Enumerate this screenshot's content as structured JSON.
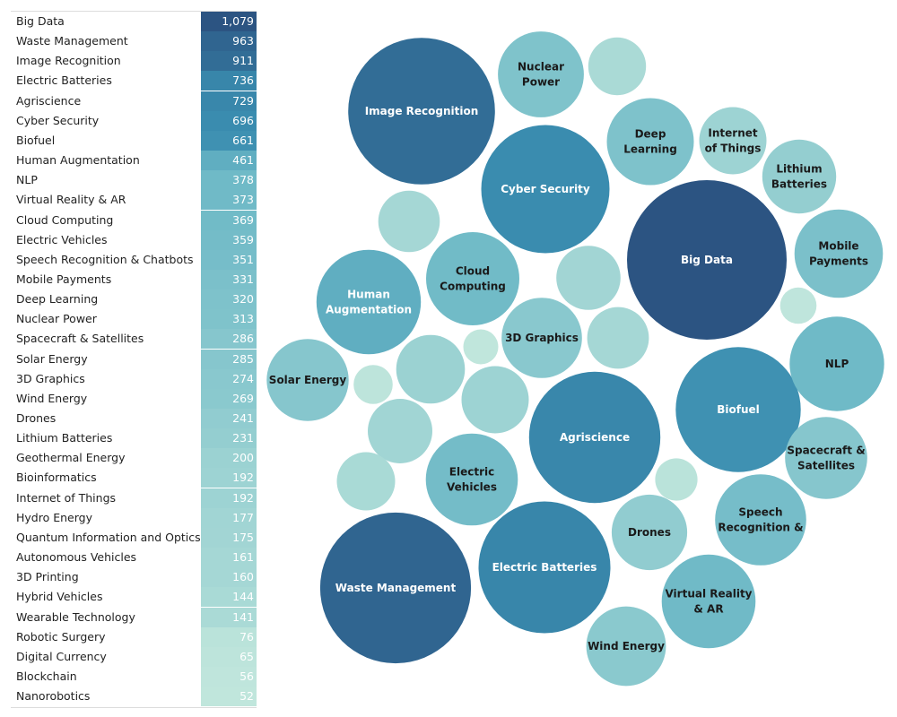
{
  "chart_data": {
    "type": "table",
    "companion_chart": "packed-bubble",
    "categories": [
      "Big Data",
      "Waste Management",
      "Image Recognition",
      "Electric Batteries",
      "Agriscience",
      "Cyber Security",
      "Biofuel",
      "Human Augmentation",
      "NLP",
      "Virtual Reality & AR",
      "Cloud Computing",
      "Electric Vehicles",
      "Speech Recognition & Chatbots",
      "Mobile Payments",
      "Deep Learning",
      "Nuclear Power",
      "Spacecraft & Satellites",
      "Solar Energy",
      "3D Graphics",
      "Wind Energy",
      "Drones",
      "Lithium Batteries",
      "Geothermal Energy",
      "Bioinformatics",
      "Internet of Things",
      "Hydro Energy",
      "Quantum Information and Optics",
      "Autonomous Vehicles",
      "3D Printing",
      "Hybrid Vehicles",
      "Wearable Technology",
      "Robotic Surgery",
      "Digital Currency",
      "Blockchain",
      "Nanorobotics"
    ],
    "values": [
      1079,
      963,
      911,
      736,
      729,
      696,
      661,
      461,
      378,
      373,
      369,
      359,
      351,
      331,
      320,
      313,
      286,
      285,
      274,
      269,
      241,
      231,
      200,
      192,
      192,
      177,
      175,
      161,
      160,
      144,
      141,
      76,
      65,
      56,
      52
    ],
    "value_labels": [
      "1,079",
      "963",
      "911",
      "736",
      "729",
      "696",
      "661",
      "461",
      "378",
      "373",
      "369",
      "359",
      "351",
      "331",
      "320",
      "313",
      "286",
      "285",
      "274",
      "269",
      "241",
      "231",
      "200",
      "192",
      "192",
      "177",
      "175",
      "161",
      "160",
      "144",
      "141",
      "76",
      "65",
      "56",
      "52"
    ],
    "bubble_labels": [
      [
        "Big Data"
      ],
      [
        "Waste Management"
      ],
      [
        "Image Recognition"
      ],
      [
        "Electric Batteries"
      ],
      [
        "Agriscience"
      ],
      [
        "Cyber Security"
      ],
      [
        "Biofuel"
      ],
      [
        "Human",
        "Augmentation"
      ],
      [
        "NLP"
      ],
      [
        "Virtual Reality",
        "& AR"
      ],
      [
        "Cloud",
        "Computing"
      ],
      [
        "Electric",
        "Vehicles"
      ],
      [
        "Speech",
        "Recognition &"
      ],
      [
        "Mobile",
        "Payments"
      ],
      [
        "Deep",
        "Learning"
      ],
      [
        "Nuclear",
        "Power"
      ],
      [
        "Spacecraft &",
        "Satellites"
      ],
      [
        "Solar Energy"
      ],
      [
        "3D Graphics"
      ],
      [
        "Wind Energy"
      ],
      [
        "Drones"
      ],
      [
        "Lithium",
        "Batteries"
      ],
      [],
      [],
      [
        "Internet",
        "of Things"
      ],
      [],
      [],
      [],
      [],
      [],
      [],
      [],
      [],
      [],
      []
    ],
    "color_scale": {
      "low": "#c0e6dc",
      "high": "#2c5482"
    }
  }
}
